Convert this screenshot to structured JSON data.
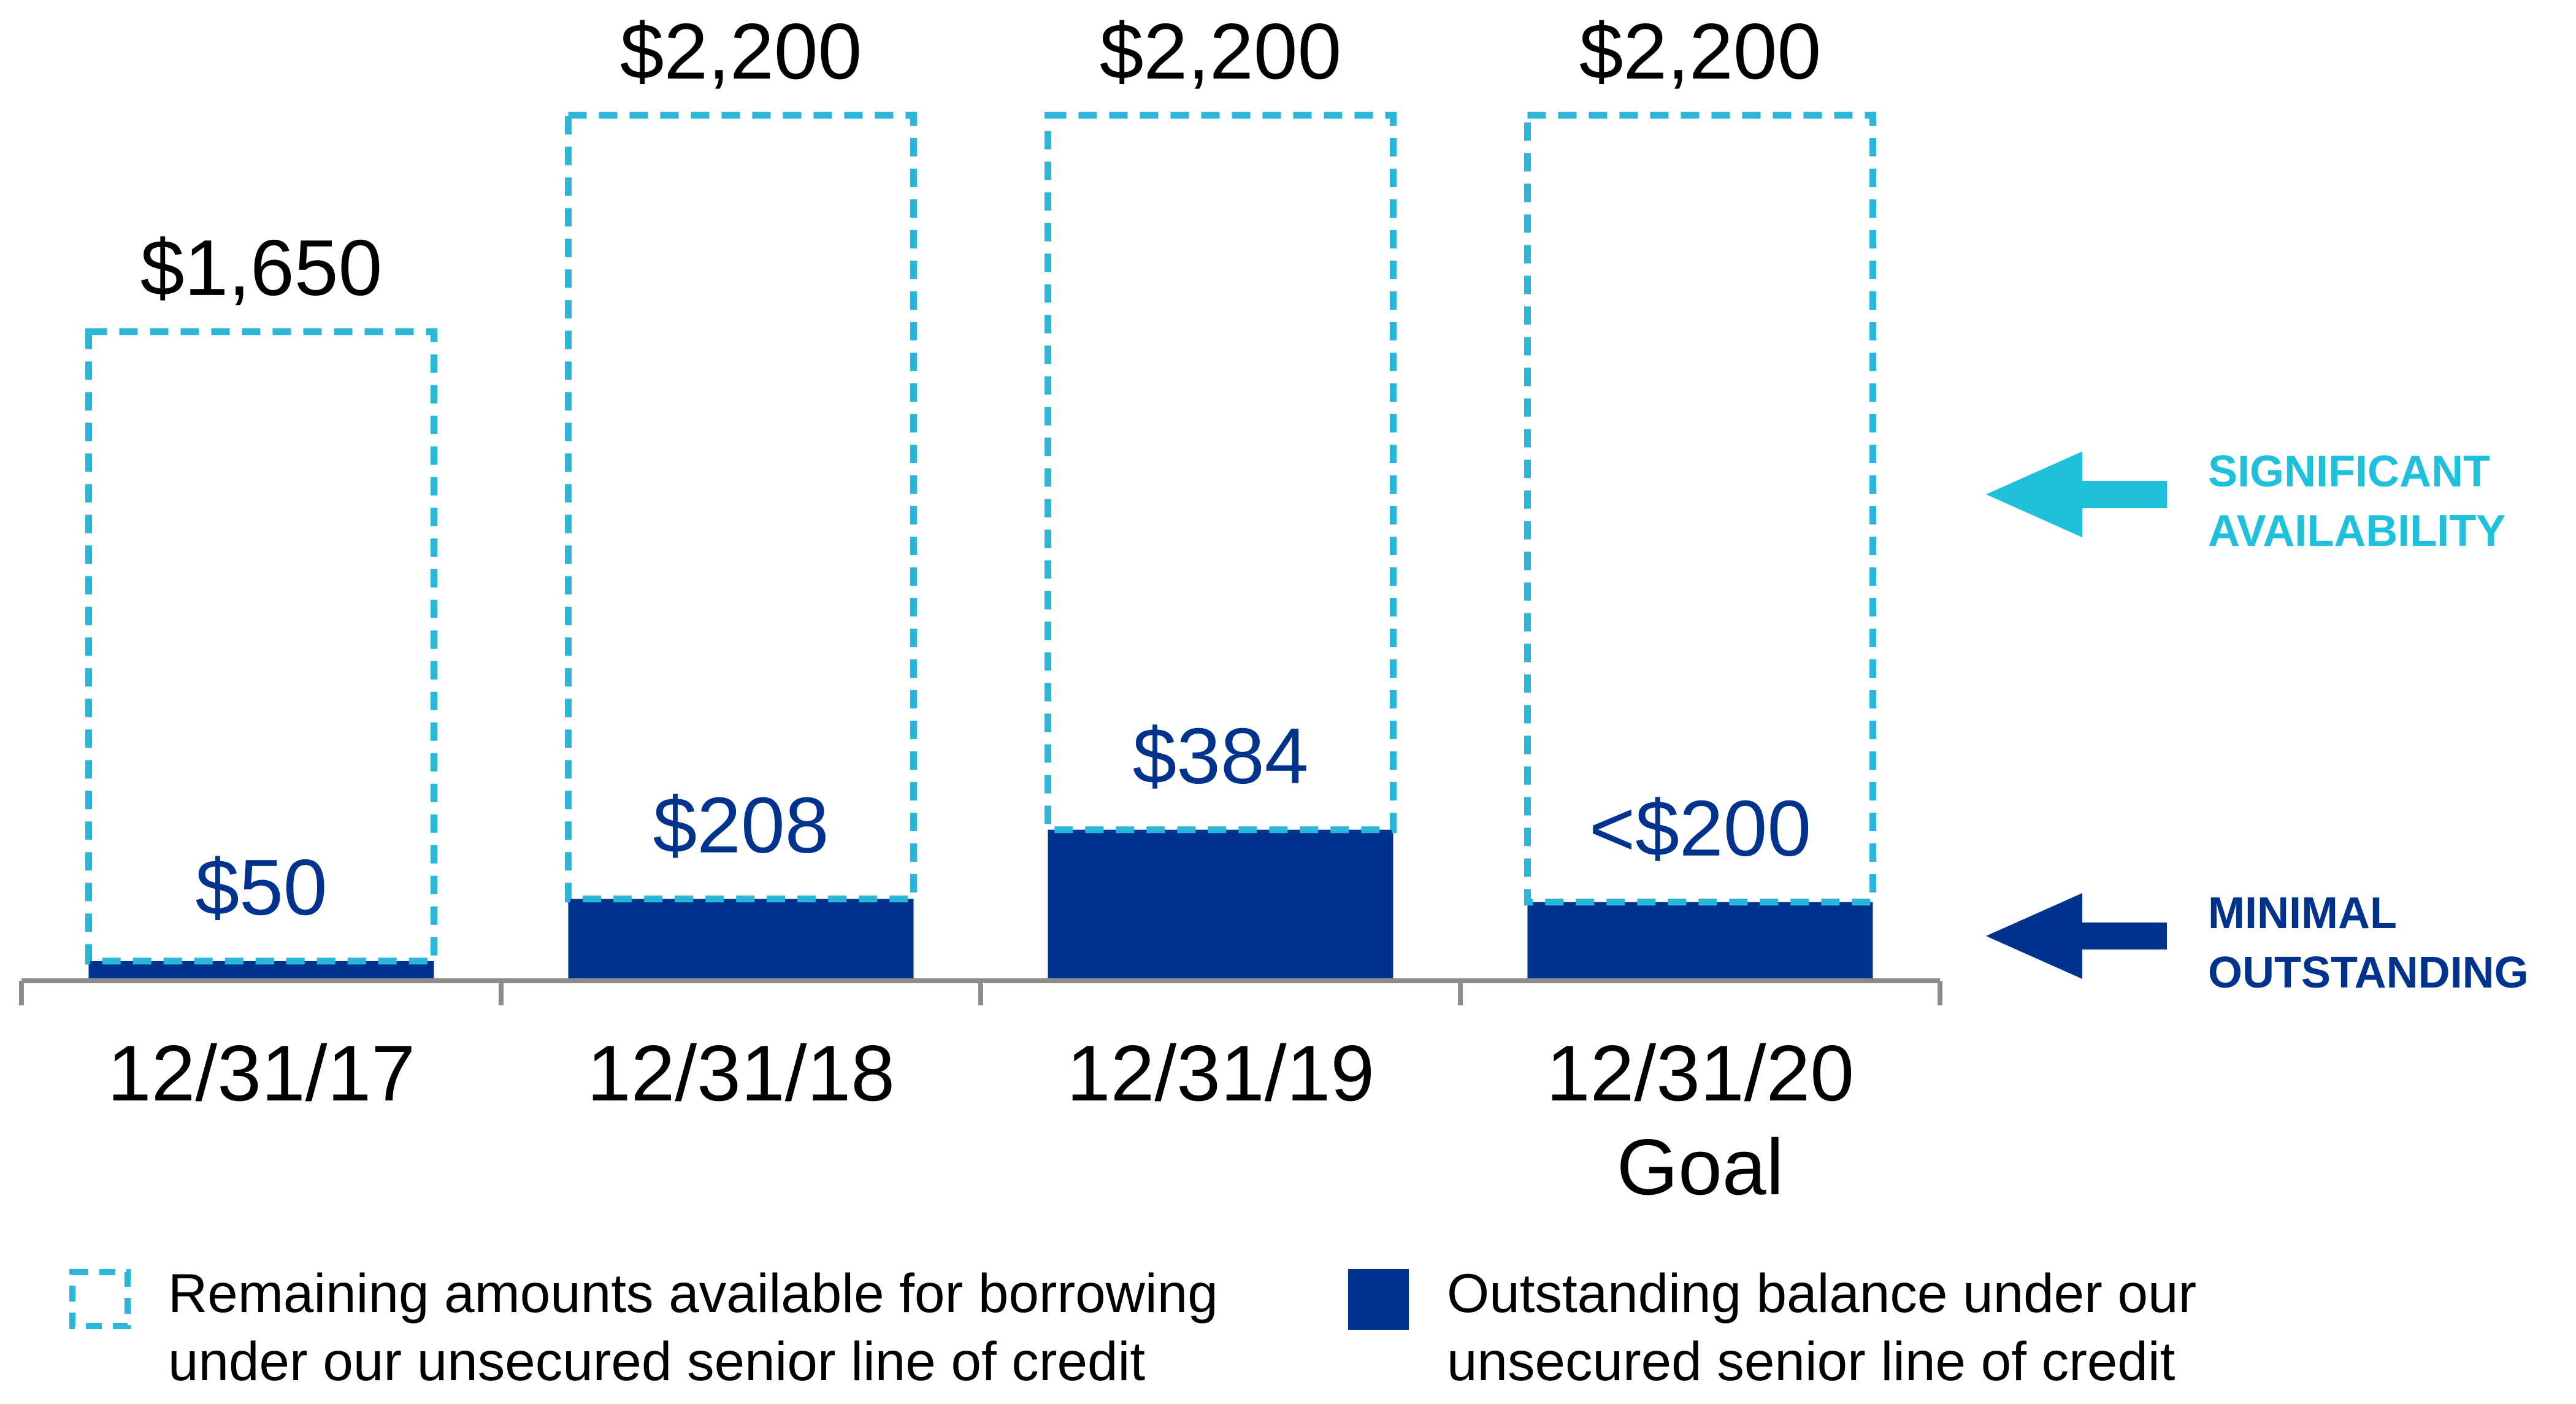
{
  "chart_data": {
    "type": "overlay_bar",
    "categories": [
      "12/31/17",
      "12/31/18",
      "12/31/19",
      "12/31/20"
    ],
    "category_note": "Goal",
    "ylim": [
      0,
      2200
    ],
    "series": [
      {
        "name": "Remaining amounts available for borrowing under our unsecured senior line of credit",
        "color": "#29b6d8",
        "values": [
          1650,
          2200,
          2200,
          2200
        ],
        "value_labels": [
          "$1,650",
          "$2,200",
          "$2,200",
          "$2,200"
        ]
      },
      {
        "name": "Outstanding balance under our unsecured senior line of credit",
        "color": "#00338d",
        "values": [
          50,
          208,
          384,
          200
        ],
        "value_labels": [
          "$50",
          "$208",
          "$384",
          "<$200"
        ]
      }
    ],
    "annotations": [
      {
        "lines": [
          "SIGNIFICANT",
          "AVAILABILITY"
        ],
        "color": "#1ec0dc"
      },
      {
        "lines": [
          "MINIMAL",
          "OUTSTANDING"
        ],
        "color": "#00338d"
      }
    ]
  }
}
